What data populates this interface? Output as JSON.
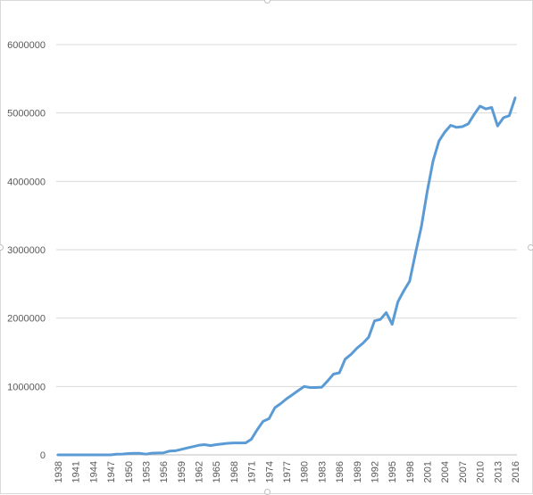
{
  "chart_data": {
    "type": "line",
    "title": "",
    "xlabel": "",
    "ylabel": "",
    "ylim": [
      0,
      6000000
    ],
    "yticks": [
      "0",
      "1000000",
      "2000000",
      "3000000",
      "4000000",
      "5000000",
      "6000000"
    ],
    "xtick_labels": [
      "1938",
      "1941",
      "1944",
      "1947",
      "1950",
      "1953",
      "1956",
      "1959",
      "1962",
      "1965",
      "1968",
      "1971",
      "1974",
      "1977",
      "1980",
      "1983",
      "1986",
      "1989",
      "1992",
      "1995",
      "1998",
      "2001",
      "2004",
      "2007",
      "2010",
      "2013",
      "2016"
    ],
    "grid": true,
    "legend": "none",
    "line_color": "#5b9bd5",
    "series": [
      {
        "x": [
          1938,
          1939,
          1940,
          1941,
          1942,
          1943,
          1944,
          1945,
          1946,
          1947,
          1948,
          1949,
          1950,
          1951,
          1952,
          1953,
          1954,
          1955,
          1956,
          1957,
          1958,
          1959,
          1960,
          1961,
          1962,
          1963,
          1964,
          1965,
          1966,
          1967,
          1968,
          1969,
          1970,
          1971,
          1972,
          1973,
          1974,
          1975,
          1976,
          1977,
          1978,
          1979,
          1980,
          1981,
          1982,
          1983,
          1984,
          1985,
          1986,
          1987,
          1988,
          1989,
          1990,
          1991,
          1992,
          1993,
          1994,
          1995,
          1996,
          1997,
          1998,
          1999,
          2000,
          2001,
          2002,
          2003,
          2004,
          2005,
          2006,
          2007,
          2008,
          2009,
          2010,
          2011,
          2012,
          2013,
          2014,
          2015,
          2016
        ],
        "values": [
          0,
          0,
          0,
          0,
          0,
          0,
          0,
          0,
          0,
          0,
          10000,
          12000,
          20000,
          22000,
          22000,
          10000,
          25000,
          28000,
          30000,
          55000,
          60000,
          80000,
          100000,
          120000,
          140000,
          150000,
          135000,
          150000,
          160000,
          170000,
          175000,
          175000,
          175000,
          230000,
          370000,
          490000,
          530000,
          690000,
          750000,
          820000,
          880000,
          940000,
          1000000,
          985000,
          985000,
          990000,
          1080000,
          1180000,
          1200000,
          1400000,
          1470000,
          1560000,
          1630000,
          1720000,
          1960000,
          1980000,
          2080000,
          1910000,
          2240000,
          2400000,
          2540000,
          2950000,
          3340000,
          3850000,
          4300000,
          4590000,
          4720000,
          4820000,
          4790000,
          4800000,
          4840000,
          4980000,
          5100000,
          5060000,
          5080000,
          4810000,
          4930000,
          4960000,
          5220000
        ]
      }
    ]
  }
}
